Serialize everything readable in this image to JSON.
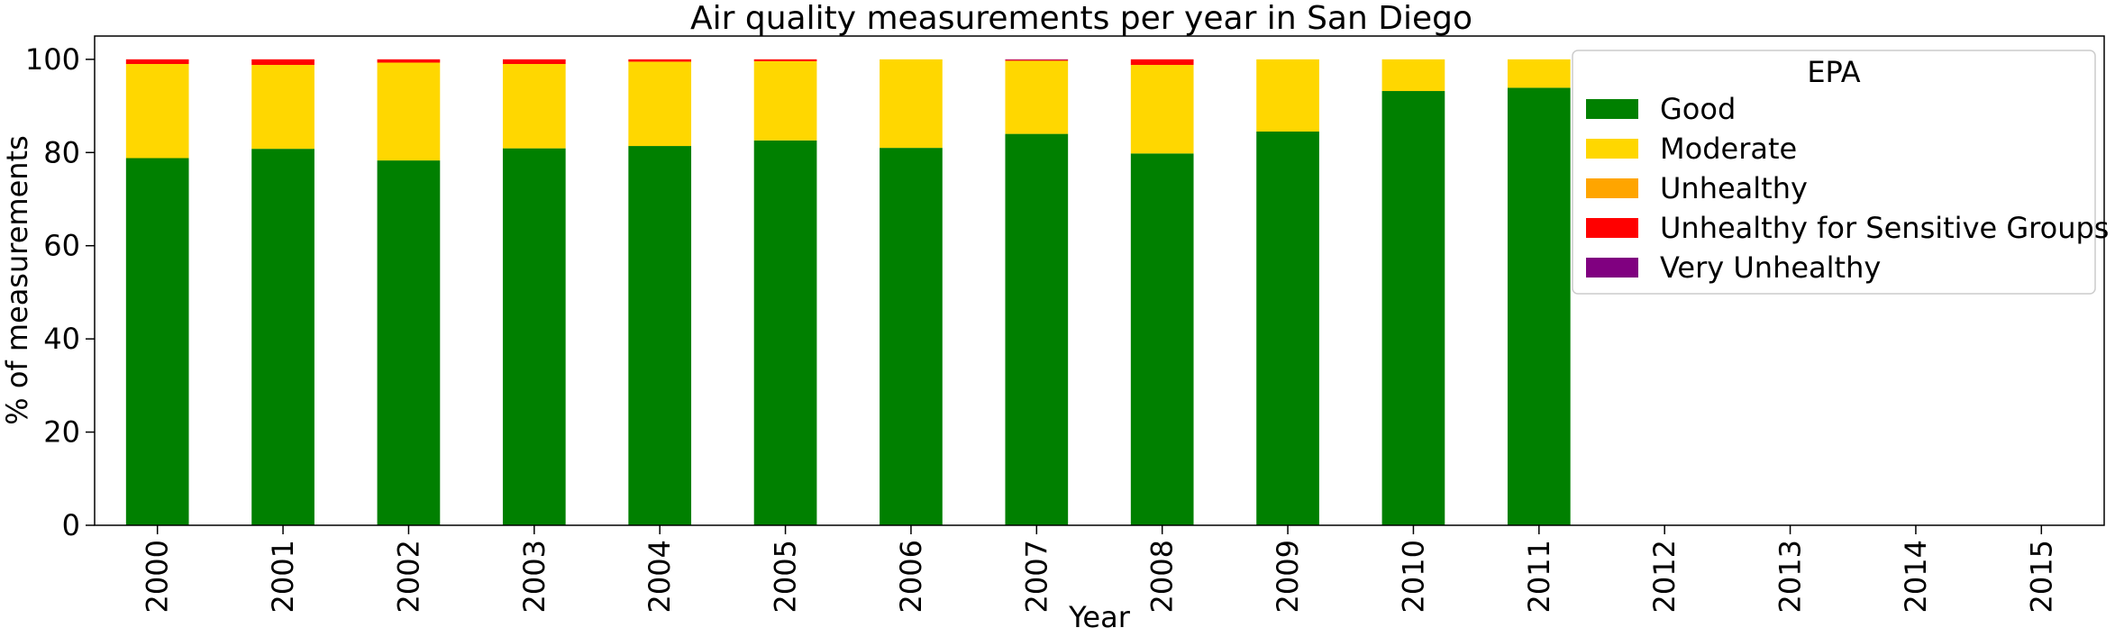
{
  "chart_data": {
    "type": "bar",
    "stacked": true,
    "title": "Air quality measurements per year in San Diego",
    "xlabel": "Year",
    "ylabel": "% of measurements",
    "ylim": [
      0,
      105
    ],
    "yticks": [
      0,
      20,
      40,
      60,
      80,
      100
    ],
    "grid": false,
    "categories": [
      "2000",
      "2001",
      "2002",
      "2003",
      "2004",
      "2005",
      "2006",
      "2007",
      "2008",
      "2009",
      "2010",
      "2011",
      "2012",
      "2013",
      "2014",
      "2015"
    ],
    "legend": {
      "title": "EPA",
      "placement": "top-right",
      "entries": [
        "Good",
        "Moderate",
        "Unhealthy",
        "Unhealthy for Sensitive Groups",
        "Very Unhealthy"
      ]
    },
    "series": [
      {
        "name": "Good",
        "color": "#008000",
        "values": [
          78.8,
          80.8,
          78.3,
          80.9,
          81.4,
          82.6,
          81.0,
          84.0,
          79.8,
          84.5,
          93.2,
          93.9,
          0,
          0,
          0,
          0
        ]
      },
      {
        "name": "Moderate",
        "color": "#FFD700",
        "values": [
          20.2,
          18.0,
          21.0,
          18.1,
          18.1,
          17.0,
          19.0,
          15.7,
          19.0,
          15.5,
          6.8,
          6.1,
          0,
          0,
          0,
          0
        ]
      },
      {
        "name": "Unhealthy",
        "color": "#FFA500",
        "values": [
          0,
          0,
          0,
          0,
          0,
          0,
          0,
          0,
          0,
          0,
          0,
          0,
          0,
          0,
          0,
          0
        ]
      },
      {
        "name": "Unhealthy for Sensitive Groups",
        "color": "#FF0000",
        "values": [
          1.0,
          1.2,
          0.7,
          1.0,
          0.5,
          0.4,
          0,
          0.2,
          1.2,
          0,
          0,
          0,
          0,
          0,
          0,
          0
        ]
      },
      {
        "name": "Very Unhealthy",
        "color": "#800080",
        "values": [
          0,
          0,
          0,
          0,
          0,
          0,
          0,
          0.1,
          0,
          0,
          0,
          0,
          0,
          0,
          0,
          0
        ]
      }
    ]
  }
}
